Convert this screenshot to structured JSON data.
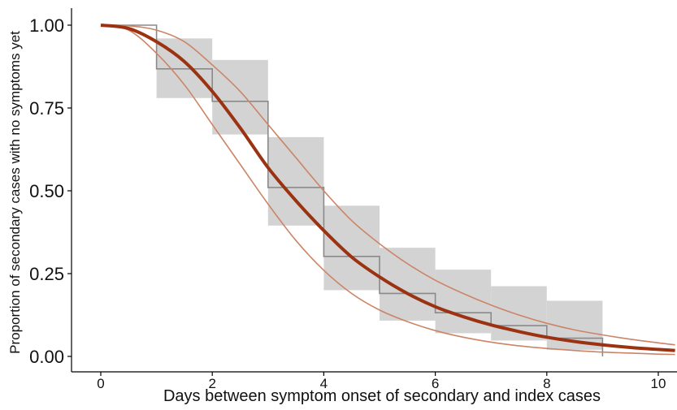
{
  "chart_data": {
    "type": "line",
    "title": "",
    "xlabel": "Days between symptom onset of secondary and index cases",
    "ylabel": "Proportion of secondary cases with no symptoms yet",
    "xlim": [
      -0.4,
      10.3
    ],
    "ylim": [
      -0.04,
      1.05
    ],
    "x_ticks": [
      0,
      2,
      4,
      6,
      8,
      10
    ],
    "x_tick_labels": [
      "0",
      "2",
      "4",
      "6",
      "8",
      "10"
    ],
    "y_ticks": [
      0,
      0.25,
      0.5,
      0.75,
      1.0
    ],
    "y_tick_labels": [
      "0.00",
      "0.25",
      "0.50",
      "0.75",
      "1.00"
    ],
    "grid": false,
    "legend": "none",
    "colors": {
      "fit": "#9b3312",
      "ci_lines": "#cc8466",
      "step": "#8a8a8a",
      "ci_band": "#d3d3d3"
    },
    "empirical_steps": [
      {
        "x0": 0,
        "x1": 1,
        "y": 1.0,
        "lo": 1.0,
        "hi": 1.0
      },
      {
        "x0": 1,
        "x1": 2,
        "y": 0.868,
        "lo": 0.78,
        "hi": 0.96
      },
      {
        "x0": 2,
        "x1": 3,
        "y": 0.77,
        "lo": 0.67,
        "hi": 0.895
      },
      {
        "x0": 3,
        "x1": 4,
        "y": 0.51,
        "lo": 0.395,
        "hi": 0.662
      },
      {
        "x0": 4,
        "x1": 5,
        "y": 0.302,
        "lo": 0.2,
        "hi": 0.455
      },
      {
        "x0": 5,
        "x1": 6,
        "y": 0.19,
        "lo": 0.108,
        "hi": 0.328
      },
      {
        "x0": 6,
        "x1": 7,
        "y": 0.132,
        "lo": 0.07,
        "hi": 0.262
      },
      {
        "x0": 7,
        "x1": 8,
        "y": 0.093,
        "lo": 0.048,
        "hi": 0.212
      },
      {
        "x0": 8,
        "x1": 9,
        "y": 0.055,
        "lo": 0.02,
        "hi": 0.168
      }
    ],
    "fitted_curve": {
      "name": "",
      "x": [
        0,
        0.5,
        1,
        1.5,
        2,
        2.5,
        3,
        3.5,
        4,
        4.5,
        5,
        5.5,
        6,
        6.5,
        7,
        7.5,
        8,
        8.5,
        9,
        9.5,
        10,
        10.3
      ],
      "y": [
        1.0,
        0.99,
        0.95,
        0.89,
        0.8,
        0.69,
        0.57,
        0.47,
        0.38,
        0.3,
        0.24,
        0.19,
        0.15,
        0.12,
        0.095,
        0.075,
        0.058,
        0.045,
        0.035,
        0.027,
        0.021,
        0.018
      ]
    },
    "upper_bound": {
      "name": "",
      "x": [
        0,
        0.5,
        1,
        1.5,
        2,
        2.5,
        3,
        3.5,
        4,
        4.5,
        5,
        5.5,
        6,
        6.5,
        7,
        7.5,
        8,
        8.5,
        9,
        9.5,
        10,
        10.3
      ],
      "y": [
        1.0,
        0.998,
        0.985,
        0.95,
        0.88,
        0.8,
        0.7,
        0.6,
        0.5,
        0.41,
        0.34,
        0.28,
        0.23,
        0.19,
        0.155,
        0.125,
        0.1,
        0.08,
        0.065,
        0.052,
        0.041,
        0.035
      ]
    },
    "lower_bound": {
      "name": "",
      "x": [
        0,
        0.5,
        1,
        1.5,
        2,
        2.5,
        3,
        3.5,
        4,
        4.5,
        5,
        5.5,
        6,
        6.5,
        7,
        7.5,
        8,
        8.5,
        9,
        9.5,
        10,
        10.3
      ],
      "y": [
        1.0,
        0.985,
        0.915,
        0.82,
        0.7,
        0.58,
        0.46,
        0.35,
        0.26,
        0.19,
        0.14,
        0.105,
        0.078,
        0.058,
        0.043,
        0.032,
        0.024,
        0.018,
        0.013,
        0.01,
        0.007,
        0.006
      ]
    }
  }
}
